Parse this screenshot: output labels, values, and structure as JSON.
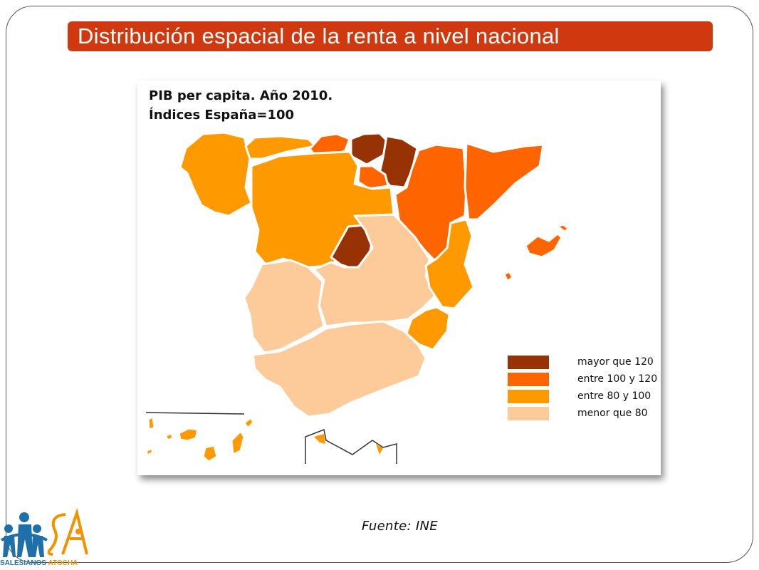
{
  "slide": {
    "title": "Distribución espacial de la renta a nivel nacional",
    "source": "Fuente: INE",
    "colors": {
      "title_bar": "#d0390f",
      "frame_border": "#555555"
    }
  },
  "map": {
    "title_line1": "PIB per capita. Año 2010.",
    "title_line2": "Índices España=100",
    "legend": [
      {
        "label": "mayor que 120",
        "color": "#963203"
      },
      {
        "label": "entre 100 y 120",
        "color": "#fe6500"
      },
      {
        "label": "entre 80 y 100",
        "color": "#fe9a00"
      },
      {
        "label": "menor que 80",
        "color": "#fdcb9a"
      }
    ]
  },
  "logo": {
    "text_part1": "SALESIANOS",
    "text_part2": "ATOCHA",
    "colors": {
      "primary": "#1f6fa8",
      "accent": "#f39200"
    }
  }
}
